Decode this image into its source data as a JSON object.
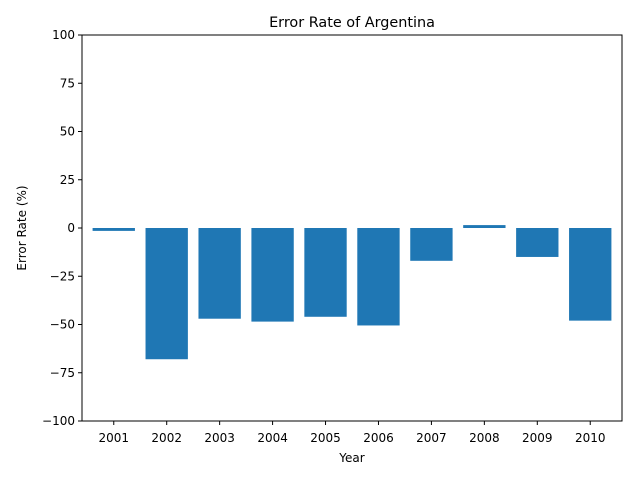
{
  "chart_data": {
    "type": "bar",
    "title": "Error Rate of Argentina",
    "xlabel": "Year",
    "ylabel": "Error Rate (%)",
    "categories": [
      "2001",
      "2002",
      "2003",
      "2004",
      "2005",
      "2006",
      "2007",
      "2008",
      "2009",
      "2010"
    ],
    "values": [
      -1.5,
      -68,
      -47,
      -48.5,
      -46,
      -50.5,
      -17,
      1.5,
      -15,
      -48
    ],
    "ylim": [
      -100,
      100
    ],
    "yticks": [
      -100,
      -75,
      -50,
      -25,
      0,
      25,
      50,
      75,
      100
    ],
    "ytick_labels": [
      "−100",
      "−75",
      "−50",
      "−25",
      "0",
      "25",
      "50",
      "75",
      "100"
    ],
    "bar_color": "#1f77b4",
    "grid": false,
    "legend": "none"
  }
}
